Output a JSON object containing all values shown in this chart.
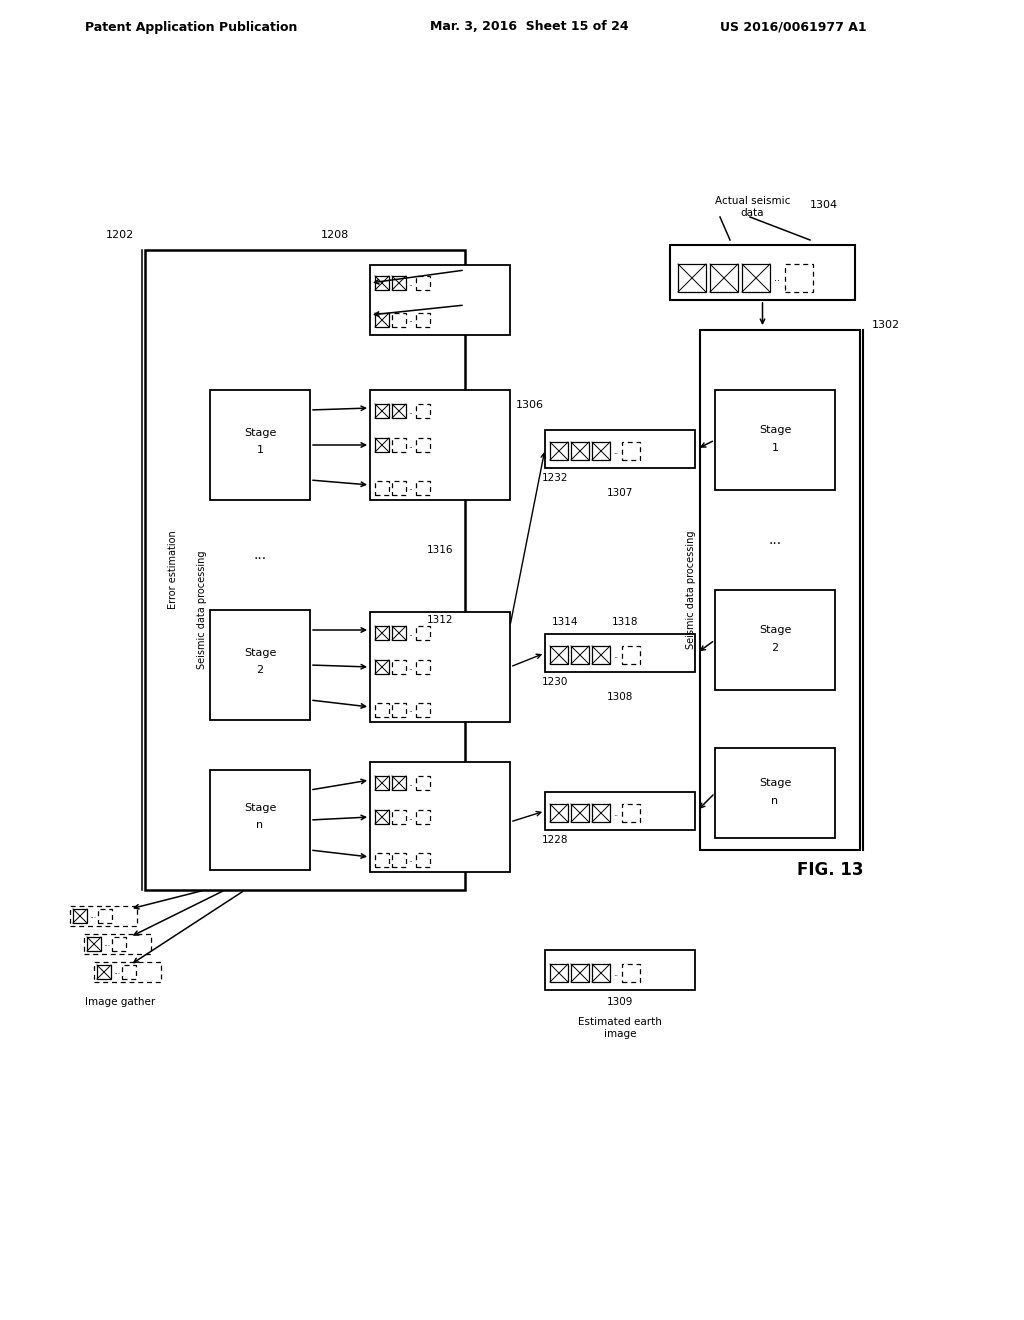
{
  "header_left": "Patent Application Publication",
  "header_mid": "Mar. 3, 2016  Sheet 15 of 24",
  "header_right": "US 2016/0061977 A1",
  "fig_label": "FIG. 13",
  "background_color": "#ffffff",
  "text_color": "#000000"
}
